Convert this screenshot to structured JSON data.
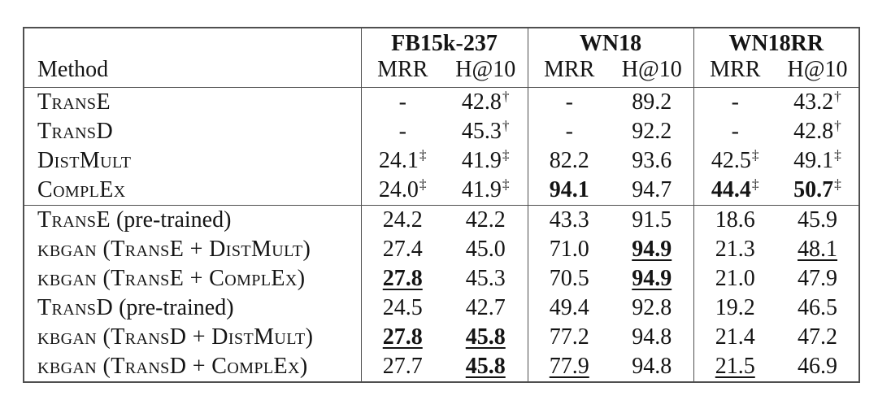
{
  "styles": {
    "border_color": "#4f4f4f",
    "text_color": "#141414",
    "background_color": "#ffffff"
  },
  "table": {
    "method_header": "Method",
    "groups": [
      {
        "label": "FB15k-237"
      },
      {
        "label": "WN18"
      },
      {
        "label": "WN18RR"
      }
    ],
    "metrics": [
      "MRR",
      "H@10"
    ],
    "footnote_markers": [
      "†",
      "‡"
    ],
    "rows": [
      {
        "method": [
          {
            "text": "TransE",
            "smallcaps": true
          }
        ],
        "cells": [
          {
            "text": "-"
          },
          {
            "text": "42.8",
            "sup": "†"
          },
          {
            "text": "-"
          },
          {
            "text": "89.2"
          },
          {
            "text": "-"
          },
          {
            "text": "43.2",
            "sup": "†"
          }
        ]
      },
      {
        "method": [
          {
            "text": "TransD",
            "smallcaps": true
          }
        ],
        "cells": [
          {
            "text": "-"
          },
          {
            "text": "45.3",
            "sup": "†"
          },
          {
            "text": "-"
          },
          {
            "text": "92.2"
          },
          {
            "text": "-"
          },
          {
            "text": "42.8",
            "sup": "†"
          }
        ]
      },
      {
        "method": [
          {
            "text": "DistMult",
            "smallcaps": true
          }
        ],
        "cells": [
          {
            "text": "24.1",
            "sup": "‡"
          },
          {
            "text": "41.9",
            "sup": "‡"
          },
          {
            "text": "82.2"
          },
          {
            "text": "93.6"
          },
          {
            "text": "42.5",
            "sup": "‡"
          },
          {
            "text": "49.1",
            "sup": "‡"
          }
        ]
      },
      {
        "method": [
          {
            "text": "ComplEx",
            "smallcaps": true
          }
        ],
        "cells": [
          {
            "text": "24.0",
            "sup": "‡"
          },
          {
            "text": "41.9",
            "sup": "‡"
          },
          {
            "text": "94.1",
            "bold": true
          },
          {
            "text": "94.7"
          },
          {
            "text": "44.4",
            "sup": "‡",
            "bold": true
          },
          {
            "text": "50.7",
            "sup": "‡",
            "bold": true
          }
        ]
      },
      {
        "section_start": true,
        "method": [
          {
            "text": "TransE",
            "smallcaps": true
          },
          {
            "text": " (pre-trained)",
            "smallcaps": false
          }
        ],
        "cells": [
          {
            "text": "24.2"
          },
          {
            "text": "42.2"
          },
          {
            "text": "43.3"
          },
          {
            "text": "91.5"
          },
          {
            "text": "18.6"
          },
          {
            "text": "45.9"
          }
        ]
      },
      {
        "method": [
          {
            "text": "kbgan (TransE + DistMult)",
            "smallcaps": true
          }
        ],
        "cells": [
          {
            "text": "27.4"
          },
          {
            "text": "45.0"
          },
          {
            "text": "71.0"
          },
          {
            "text": "94.9",
            "bold": true,
            "underline": true
          },
          {
            "text": "21.3"
          },
          {
            "text": "48.1",
            "underline": true
          }
        ]
      },
      {
        "method": [
          {
            "text": "kbgan (TransE + ComplEx)",
            "smallcaps": true
          }
        ],
        "cells": [
          {
            "text": "27.8",
            "bold": true,
            "underline": true
          },
          {
            "text": "45.3"
          },
          {
            "text": "70.5"
          },
          {
            "text": "94.9",
            "bold": true,
            "underline": true
          },
          {
            "text": "21.0"
          },
          {
            "text": "47.9"
          }
        ]
      },
      {
        "method": [
          {
            "text": "TransD",
            "smallcaps": true
          },
          {
            "text": " (pre-trained)",
            "smallcaps": false
          }
        ],
        "cells": [
          {
            "text": "24.5"
          },
          {
            "text": "42.7"
          },
          {
            "text": "49.4"
          },
          {
            "text": "92.8"
          },
          {
            "text": "19.2"
          },
          {
            "text": "46.5"
          }
        ]
      },
      {
        "method": [
          {
            "text": "kbgan (TransD + DistMult)",
            "smallcaps": true
          }
        ],
        "cells": [
          {
            "text": "27.8",
            "bold": true,
            "underline": true
          },
          {
            "text": "45.8",
            "bold": true,
            "underline": true
          },
          {
            "text": "77.2"
          },
          {
            "text": "94.8"
          },
          {
            "text": "21.4"
          },
          {
            "text": "47.2"
          }
        ]
      },
      {
        "method": [
          {
            "text": "kbgan (TransD + ComplEx)",
            "smallcaps": true
          }
        ],
        "cells": [
          {
            "text": "27.7"
          },
          {
            "text": "45.8",
            "bold": true,
            "underline": true
          },
          {
            "text": "77.9",
            "underline": true
          },
          {
            "text": "94.8"
          },
          {
            "text": "21.5",
            "underline": true
          },
          {
            "text": "46.9"
          }
        ]
      }
    ]
  }
}
